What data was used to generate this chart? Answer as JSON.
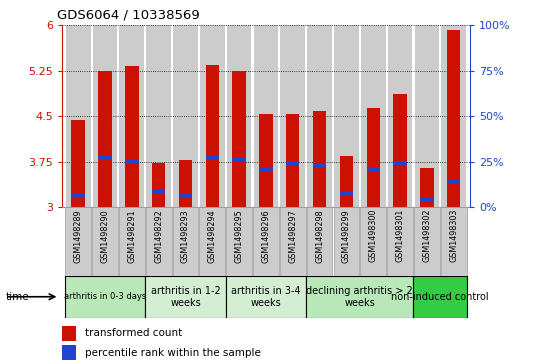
{
  "title": "GDS6064 / 10338569",
  "samples": [
    "GSM1498289",
    "GSM1498290",
    "GSM1498291",
    "GSM1498292",
    "GSM1498293",
    "GSM1498294",
    "GSM1498295",
    "GSM1498296",
    "GSM1498297",
    "GSM1498298",
    "GSM1498299",
    "GSM1498300",
    "GSM1498301",
    "GSM1498302",
    "GSM1498303"
  ],
  "red_values": [
    4.43,
    5.25,
    5.33,
    3.72,
    3.78,
    5.35,
    5.25,
    4.53,
    4.53,
    4.58,
    3.84,
    4.63,
    4.87,
    3.65,
    5.93
  ],
  "blue_values": [
    3.18,
    3.83,
    3.74,
    3.25,
    3.2,
    3.82,
    3.79,
    3.63,
    3.71,
    3.68,
    3.22,
    3.63,
    3.73,
    3.12,
    3.42
  ],
  "ymin": 3.0,
  "ymax": 6.0,
  "yticks_left": [
    3,
    3.75,
    4.5,
    5.25,
    6
  ],
  "yticks_right_vals": [
    0,
    25,
    50,
    75,
    100
  ],
  "yticks_right_pos": [
    3.0,
    3.75,
    4.5,
    5.25,
    6.0
  ],
  "groups": [
    {
      "label": "arthritis in 0-3 days",
      "start": 0,
      "end": 3,
      "color": "#b8e8b8"
    },
    {
      "label": "arthritis in 1-2\nweeks",
      "start": 3,
      "end": 6,
      "color": "#d8f0d8"
    },
    {
      "label": "arthritis in 3-4\nweeks",
      "start": 6,
      "end": 9,
      "color": "#d8f0d8"
    },
    {
      "label": "declining arthritis > 2\nweeks",
      "start": 9,
      "end": 13,
      "color": "#b8e8b8"
    },
    {
      "label": "non-induced control",
      "start": 13,
      "end": 15,
      "color": "#33cc44"
    }
  ],
  "bar_width": 0.5,
  "blue_bar_height": 0.07,
  "red_color": "#cc1100",
  "blue_color": "#2244cc",
  "sample_bg_color": "#cccccc",
  "left_tick_color": "#cc1100",
  "right_tick_color": "#2244cc"
}
